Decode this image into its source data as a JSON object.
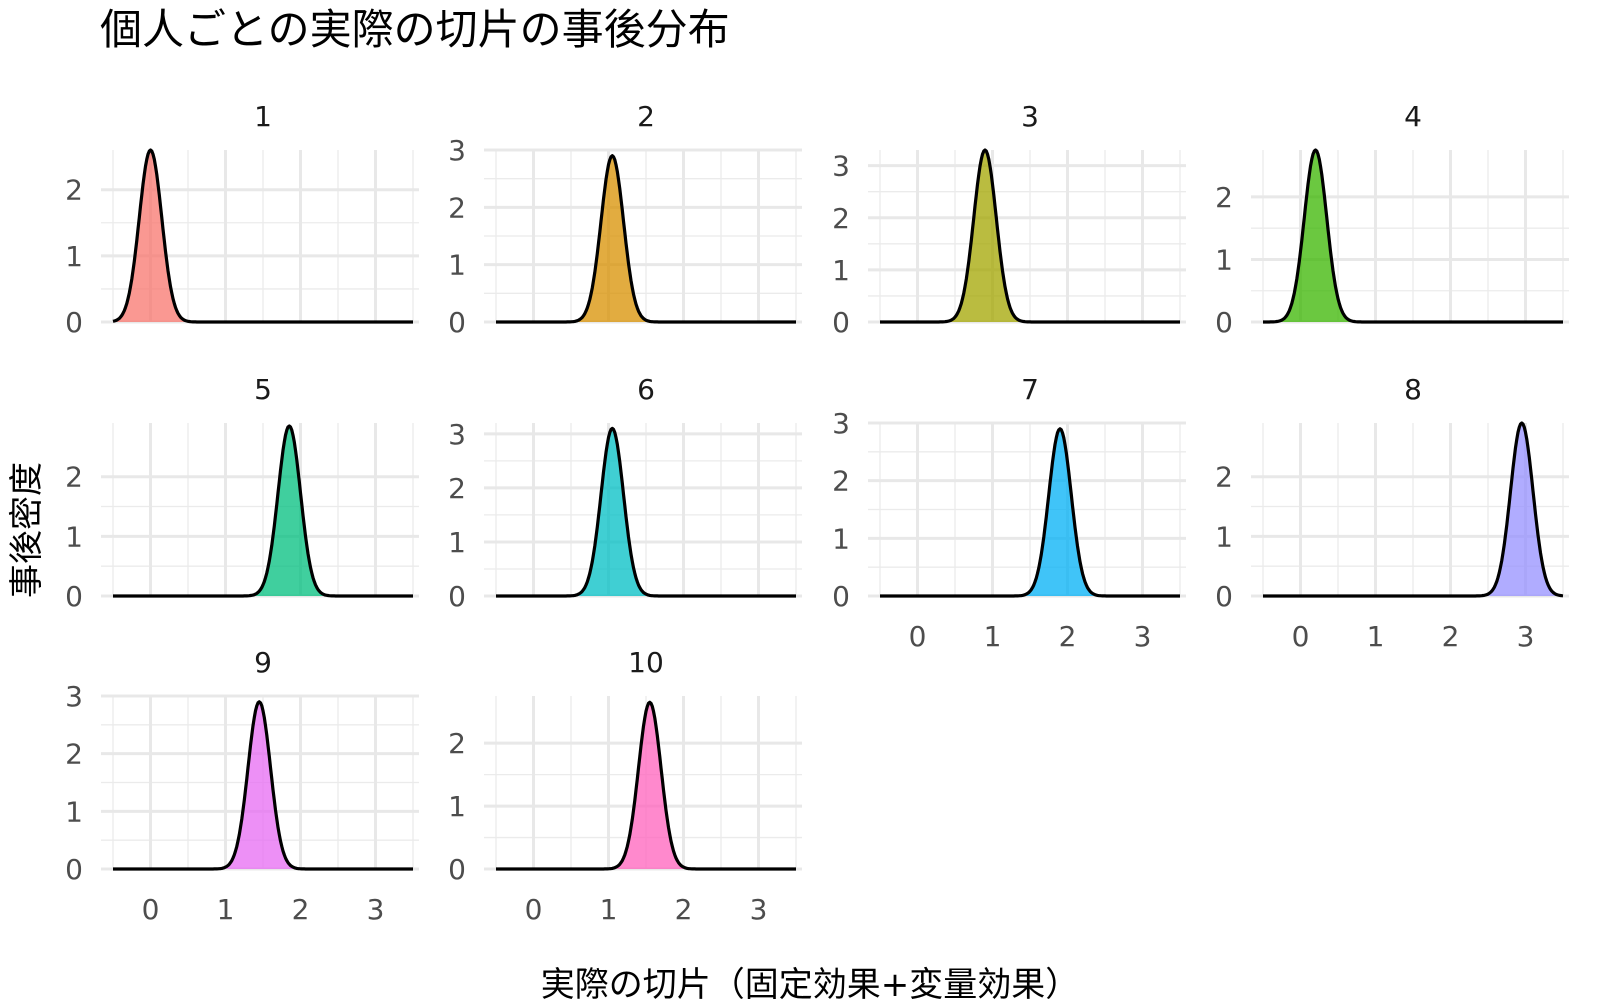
{
  "chart_data": {
    "type": "area",
    "title": "個人ごとの実際の切片の事後分布",
    "xlabel": "実際の切片（固定効果+変量効果）",
    "ylabel": "事後密度",
    "xlim": [
      -0.5,
      3.5
    ],
    "x_ticks": [
      0,
      1,
      2,
      3
    ],
    "grid": true,
    "legend": "none",
    "panels": [
      {
        "label": "1",
        "mean": 0.0,
        "peak": 2.6,
        "ylim": [
          0,
          2.6
        ],
        "y_ticks": [
          0,
          1,
          2
        ],
        "color": "#F8766D"
      },
      {
        "label": "2",
        "mean": 1.05,
        "peak": 2.9,
        "ylim": [
          0,
          3.0
        ],
        "y_ticks": [
          0,
          1,
          2,
          3
        ],
        "color": "#D89000"
      },
      {
        "label": "3",
        "mean": 0.9,
        "peak": 3.3,
        "ylim": [
          0,
          3.3
        ],
        "y_ticks": [
          0,
          1,
          2,
          3
        ],
        "color": "#A3A500"
      },
      {
        "label": "4",
        "mean": 0.2,
        "peak": 2.75,
        "ylim": [
          0,
          2.75
        ],
        "y_ticks": [
          0,
          1,
          2
        ],
        "color": "#39B600"
      },
      {
        "label": "5",
        "mean": 1.85,
        "peak": 2.85,
        "ylim": [
          0,
          2.9
        ],
        "y_ticks": [
          0,
          1,
          2
        ],
        "color": "#00BF7D"
      },
      {
        "label": "6",
        "mean": 1.05,
        "peak": 3.1,
        "ylim": [
          0,
          3.2
        ],
        "y_ticks": [
          0,
          1,
          2,
          3
        ],
        "color": "#00BFC4"
      },
      {
        "label": "7",
        "mean": 1.9,
        "peak": 2.9,
        "ylim": [
          0,
          3.0
        ],
        "y_ticks": [
          0,
          1,
          2,
          3
        ],
        "color": "#00B0F6"
      },
      {
        "label": "8",
        "mean": 2.95,
        "peak": 2.9,
        "ylim": [
          0,
          2.9
        ],
        "y_ticks": [
          0,
          1,
          2
        ],
        "color": "#9590FF"
      },
      {
        "label": "9",
        "mean": 1.45,
        "peak": 2.9,
        "ylim": [
          0,
          3.0
        ],
        "y_ticks": [
          0,
          1,
          2,
          3
        ],
        "color": "#E76BF3"
      },
      {
        "label": "10",
        "mean": 1.55,
        "peak": 2.65,
        "ylim": [
          0,
          2.75
        ],
        "y_ticks": [
          0,
          1,
          2
        ],
        "color": "#FF62BC"
      }
    ]
  }
}
